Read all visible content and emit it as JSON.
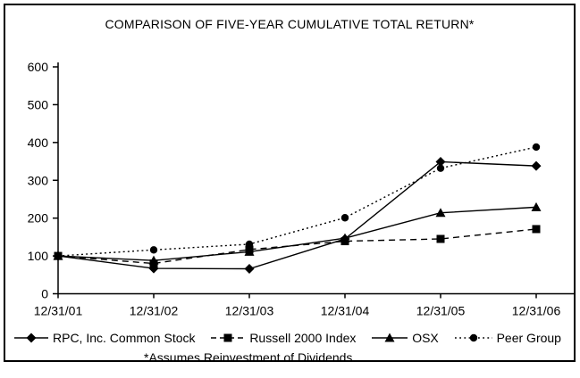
{
  "chart_data": {
    "type": "line",
    "title": "COMPARISON OF FIVE-YEAR CUMULATIVE TOTAL RETURN*",
    "footnote": "*Assumes Reinvestment of Dividends",
    "categories": [
      "12/31/01",
      "12/31/02",
      "12/31/03",
      "12/31/04",
      "12/31/05",
      "12/31/06"
    ],
    "series": [
      {
        "name": "RPC, Inc. Common Stock",
        "marker": "diamond",
        "line_style": "solid",
        "values": [
          100,
          67,
          66,
          145,
          349,
          338
        ]
      },
      {
        "name": "Russell 2000 Index",
        "marker": "square",
        "line_style": "dashed",
        "values": [
          100,
          80,
          117,
          139,
          145,
          171
        ]
      },
      {
        "name": "OSX",
        "marker": "triangle",
        "line_style": "solid",
        "values": [
          100,
          88,
          111,
          147,
          214,
          229
        ]
      },
      {
        "name": "Peer Group",
        "marker": "circle",
        "line_style": "dotted",
        "values": [
          100,
          116,
          131,
          201,
          332,
          388
        ]
      }
    ],
    "ylim": [
      0,
      600
    ],
    "y_ticks": [
      0,
      100,
      200,
      300,
      400,
      500,
      600
    ],
    "grid": false,
    "legend_position": "bottom",
    "colors": {
      "line": "#000000",
      "background": "#ffffff",
      "border": "#000000"
    }
  }
}
